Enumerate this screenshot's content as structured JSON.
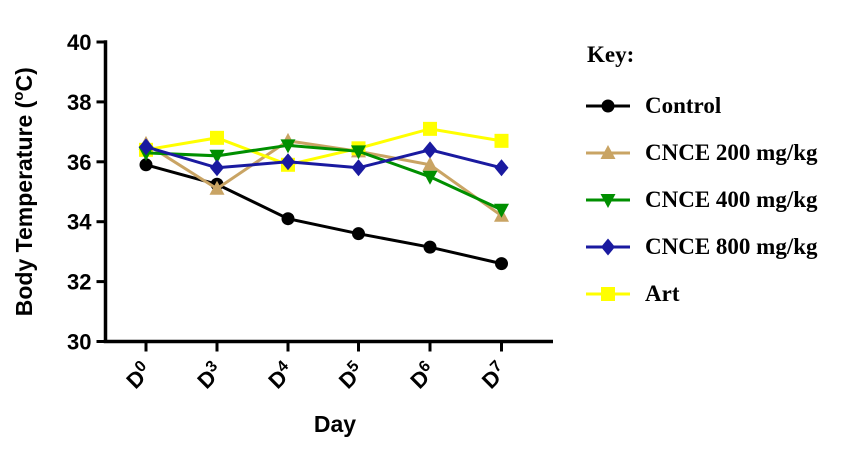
{
  "chart_data": {
    "type": "line",
    "title": "",
    "xlabel": "Day",
    "ylabel": "Body Temperature (°C)",
    "ylim": [
      30,
      40
    ],
    "y_ticks": [
      40,
      38,
      36,
      34,
      32,
      30
    ],
    "grid": false,
    "categories": [
      {
        "label": "D0",
        "base": "D",
        "sup": "0"
      },
      {
        "label": "D3",
        "base": "D",
        "sup": "3"
      },
      {
        "label": "D4",
        "base": "D",
        "sup": "4"
      },
      {
        "label": "D5",
        "base": "D",
        "sup": "5"
      },
      {
        "label": "D6",
        "base": "D",
        "sup": "6"
      },
      {
        "label": "D7",
        "base": "D",
        "sup": "7"
      }
    ],
    "series": [
      {
        "name": "Control",
        "marker": "circle",
        "color": "#000000",
        "z": 1,
        "values": [
          35.9,
          35.25,
          34.1,
          33.6,
          33.15,
          32.6
        ]
      },
      {
        "name": "CNCE 200 mg/kg",
        "marker": "triangle-up",
        "color": "#C9A464",
        "z": 2,
        "values": [
          36.6,
          35.1,
          36.7,
          36.35,
          35.9,
          34.2
        ]
      },
      {
        "name": "CNCE 400 mg/kg",
        "marker": "triangle-down",
        "color": "#008F00",
        "z": 4,
        "values": [
          36.3,
          36.2,
          36.55,
          36.35,
          35.5,
          34.4
        ]
      },
      {
        "name": "CNCE 800 mg/kg",
        "marker": "diamond",
        "color": "#1A1AA0",
        "z": 5,
        "values": [
          36.5,
          35.8,
          36.0,
          35.8,
          36.4,
          35.8
        ]
      },
      {
        "name": "Art",
        "marker": "square",
        "color": "#FFFF00",
        "z": 3,
        "values": [
          36.4,
          36.8,
          35.9,
          36.45,
          37.1,
          36.7
        ]
      }
    ],
    "legend": {
      "title": "Key:",
      "position": "right"
    }
  }
}
